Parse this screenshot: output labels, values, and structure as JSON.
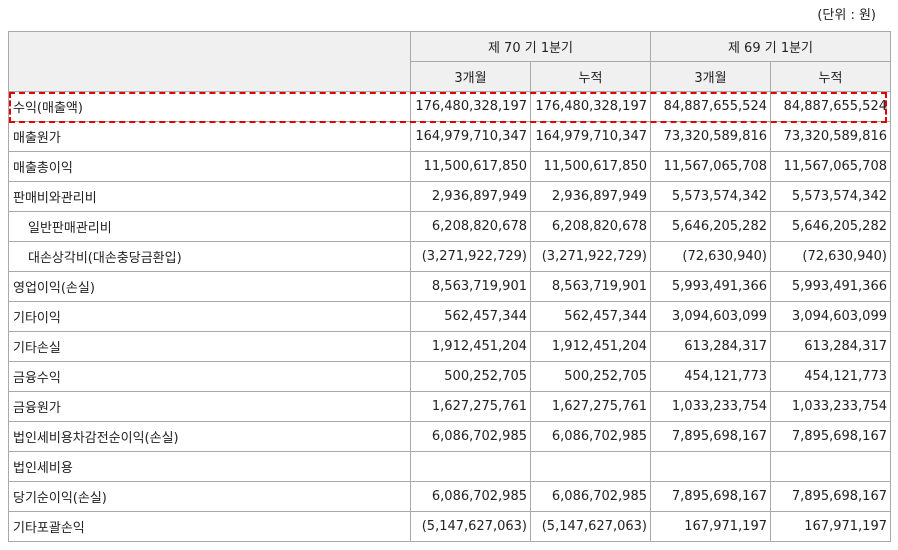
{
  "unit_note": "(단위 : 원)",
  "header": {
    "period1": "제 70 기 1분기",
    "period2": "제 69 기 1분기",
    "sub": [
      "3개월",
      "누적",
      "3개월",
      "누적"
    ]
  },
  "highlight_color": "#e00000",
  "rows": [
    {
      "label": "수익(매출액)",
      "v": [
        "176,480,328,197",
        "176,480,328,197",
        "84,887,655,524",
        "84,887,655,524"
      ]
    },
    {
      "label": "매출원가",
      "v": [
        "164,979,710,347",
        "164,979,710,347",
        "73,320,589,816",
        "73,320,589,816"
      ]
    },
    {
      "label": "매출총이익",
      "v": [
        "11,500,617,850",
        "11,500,617,850",
        "11,567,065,708",
        "11,567,065,708"
      ]
    },
    {
      "label": "판매비와관리비",
      "v": [
        "2,936,897,949",
        "2,936,897,949",
        "5,573,574,342",
        "5,573,574,342"
      ]
    },
    {
      "label": "일반판매관리비",
      "v": [
        "6,208,820,678",
        "6,208,820,678",
        "5,646,205,282",
        "5,646,205,282"
      ]
    },
    {
      "label": "대손상각비(대손충당금환입)",
      "v": [
        "(3,271,922,729)",
        "(3,271,922,729)",
        "(72,630,940)",
        "(72,630,940)"
      ]
    },
    {
      "label": "영업이익(손실)",
      "v": [
        "8,563,719,901",
        "8,563,719,901",
        "5,993,491,366",
        "5,993,491,366"
      ]
    },
    {
      "label": "기타이익",
      "v": [
        "562,457,344",
        "562,457,344",
        "3,094,603,099",
        "3,094,603,099"
      ]
    },
    {
      "label": "기타손실",
      "v": [
        "1,912,451,204",
        "1,912,451,204",
        "613,284,317",
        "613,284,317"
      ]
    },
    {
      "label": "금융수익",
      "v": [
        "500,252,705",
        "500,252,705",
        "454,121,773",
        "454,121,773"
      ]
    },
    {
      "label": "금융원가",
      "v": [
        "1,627,275,761",
        "1,627,275,761",
        "1,033,233,754",
        "1,033,233,754"
      ]
    },
    {
      "label": "법인세비용차감전순이익(손실)",
      "v": [
        "6,086,702,985",
        "6,086,702,985",
        "7,895,698,167",
        "7,895,698,167"
      ]
    },
    {
      "label": "법인세비용",
      "v": [
        "",
        "",
        "",
        ""
      ]
    },
    {
      "label": "당기순이익(손실)",
      "v": [
        "6,086,702,985",
        "6,086,702,985",
        "7,895,698,167",
        "7,895,698,167"
      ]
    },
    {
      "label": "기타포괄손익",
      "v": [
        "(5,147,627,063)",
        "(5,147,627,063)",
        "167,971,197",
        "167,971,197"
      ]
    }
  ]
}
